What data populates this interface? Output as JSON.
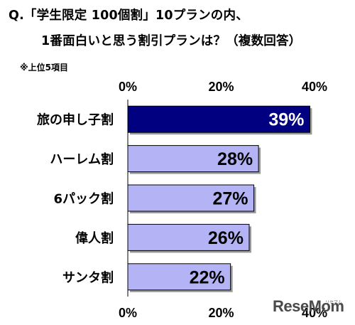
{
  "title_line1": "Q.「学生限定 100個割」10プランの内、",
  "title_line2": "1番面白いと思う割引プランは？（複数回答）",
  "note": "※上位5項目",
  "watermark": {
    "logo": "ReseMom",
    "sub": "リセマム"
  },
  "colors": {
    "highlight": "#000080",
    "bar": "#b3b3f5",
    "highlight_label": "#ffffff"
  },
  "chart_data": {
    "type": "bar",
    "orientation": "horizontal",
    "categories": [
      "旅の申し子割",
      "ハーレム割",
      "6パック割",
      "偉人割",
      "サンタ割"
    ],
    "values": [
      39,
      28,
      27,
      26,
      22
    ],
    "value_labels": [
      "39%",
      "28%",
      "27%",
      "26%",
      "22%"
    ],
    "highlight_index": 0,
    "xlim": [
      0,
      40
    ],
    "xticks": [
      0,
      20,
      40
    ],
    "xtick_labels": [
      "0%",
      "20%",
      "40%"
    ],
    "tick_labels_top_and_bottom": true,
    "grid": false,
    "legend": false
  }
}
